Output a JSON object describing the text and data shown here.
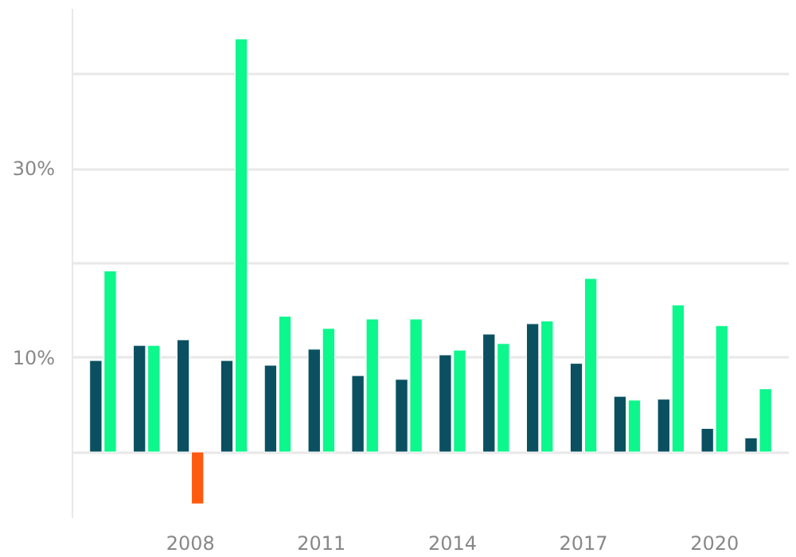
{
  "chart_data": {
    "type": "bar",
    "categories": [
      null,
      null,
      "2008",
      null,
      null,
      "2011",
      null,
      null,
      "2014",
      null,
      null,
      "2017",
      null,
      null,
      "2020",
      null
    ],
    "series": [
      {
        "color": "#0a5060",
        "values": [
          9.7,
          11.3,
          11.9,
          9.7,
          9.2,
          10.9,
          8.1,
          7.7,
          10.3,
          12.5,
          13.6,
          9.4,
          5.9,
          5.6,
          2.5,
          1.5
        ]
      },
      {
        "colors": [
          "#0cf78c",
          "#0cf78c",
          "#ff5a0f",
          "#0cf78c",
          "#0cf78c",
          "#0cf78c",
          "#0cf78c",
          "#0cf78c",
          "#0cf78c",
          "#0cf78c",
          "#0cf78c",
          "#0cf78c",
          "#0cf78c",
          "#0cf78c",
          "#0cf78c",
          "#0cf78c"
        ],
        "values": [
          19.2,
          11.3,
          -5.5,
          43.8,
          14.4,
          13.1,
          14.1,
          14.1,
          10.8,
          11.5,
          13.9,
          18.4,
          5.5,
          15.6,
          13.4,
          6.7
        ]
      }
    ],
    "ylim": [
      -7,
      47
    ],
    "yticks": [
      {
        "value": 0,
        "label": null
      },
      {
        "value": 10,
        "label": "10%"
      },
      {
        "value": 20,
        "label": null
      },
      {
        "value": 30,
        "label": "30%"
      },
      {
        "value": 40,
        "label": null
      }
    ],
    "grid": "y"
  }
}
